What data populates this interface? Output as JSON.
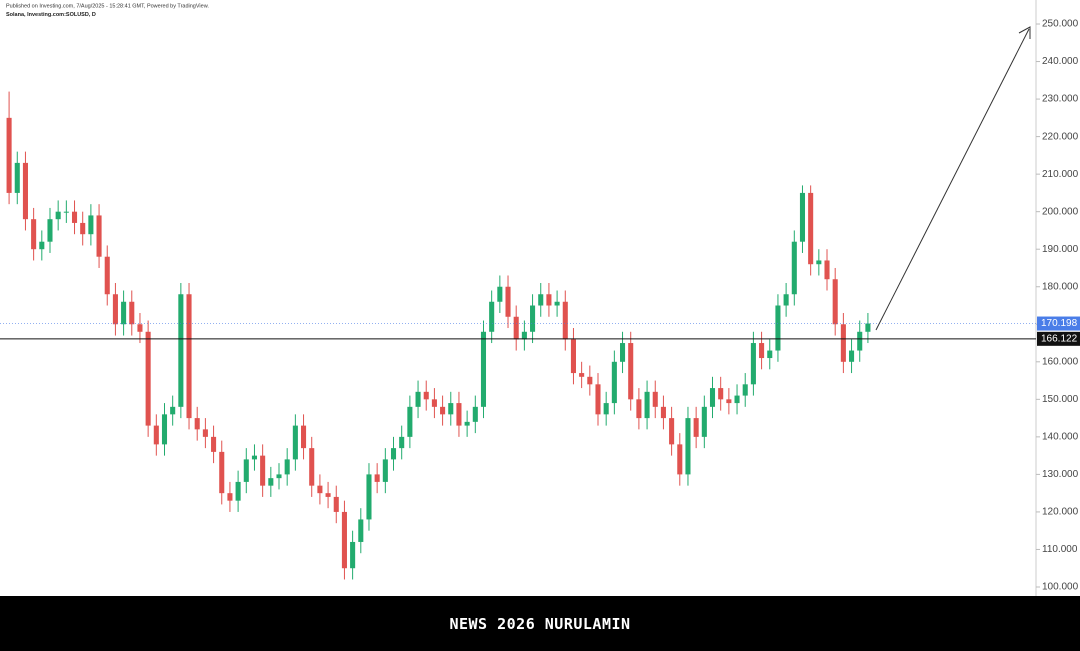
{
  "header": {
    "published": "Published on Investing.com, 7/Aug/2025 - 15:28:41 GMT, Powered by TradingView.",
    "symbol": "Solana, Investing.com:SOLUSD, D"
  },
  "chart_data": {
    "type": "candlestick",
    "up_color": "#22ab6e",
    "down_color": "#e0524f",
    "open": [
      225,
      205,
      213,
      198,
      190,
      192,
      198,
      200,
      200,
      197,
      194,
      199,
      188,
      178,
      170,
      176,
      170,
      168,
      143,
      138,
      146,
      148,
      178,
      145,
      142,
      140,
      136,
      125,
      123,
      128,
      134,
      135,
      127,
      129,
      130,
      134,
      143,
      137,
      127,
      125,
      124,
      120,
      105,
      112,
      118,
      130,
      128,
      134,
      137,
      140,
      148,
      152,
      150,
      148,
      146,
      149,
      143,
      144,
      148,
      168,
      176,
      180,
      172,
      166,
      168,
      175,
      178,
      175,
      176,
      166,
      157,
      156,
      154,
      146,
      149,
      160,
      165,
      150,
      145,
      152,
      148,
      145,
      138,
      130,
      145,
      140,
      148,
      153,
      150,
      149,
      151,
      154,
      165,
      161,
      163,
      175,
      178,
      192,
      205,
      186,
      187,
      182,
      170,
      160,
      163,
      168
    ],
    "high": [
      232,
      216,
      216,
      201,
      195,
      201,
      203,
      203,
      203,
      200,
      202,
      202,
      191,
      181,
      179,
      179,
      173,
      171,
      146,
      149,
      151,
      181,
      181,
      148,
      145,
      143,
      139,
      128,
      131,
      137,
      138,
      138,
      132,
      133,
      137,
      146,
      146,
      140,
      130,
      128,
      127,
      123,
      115,
      121,
      133,
      133,
      137,
      140,
      143,
      151,
      155,
      155,
      153,
      151,
      152,
      152,
      147,
      151,
      171,
      179,
      183,
      183,
      175,
      171,
      178,
      181,
      181,
      179,
      179,
      169,
      160,
      159,
      157,
      152,
      163,
      168,
      168,
      153,
      155,
      155,
      151,
      148,
      141,
      148,
      148,
      151,
      156,
      156,
      153,
      154,
      157,
      168,
      168,
      166,
      178,
      181,
      195,
      207,
      207,
      190,
      190,
      185,
      173,
      166,
      171,
      173
    ],
    "low": [
      202,
      202,
      195,
      187,
      187,
      189,
      195,
      197,
      194,
      191,
      191,
      185,
      175,
      167,
      167,
      167,
      165,
      140,
      135,
      135,
      143,
      145,
      142,
      139,
      137,
      133,
      122,
      120,
      120,
      125,
      131,
      124,
      124,
      126,
      127,
      131,
      134,
      124,
      122,
      121,
      117,
      102,
      102,
      109,
      115,
      125,
      125,
      131,
      134,
      137,
      145,
      147,
      145,
      143,
      143,
      140,
      140,
      141,
      145,
      165,
      173,
      169,
      163,
      163,
      165,
      172,
      172,
      172,
      163,
      154,
      153,
      151,
      143,
      143,
      146,
      157,
      147,
      142,
      142,
      145,
      142,
      135,
      127,
      127,
      137,
      137,
      145,
      147,
      146,
      146,
      148,
      151,
      158,
      158,
      160,
      172,
      175,
      189,
      183,
      183,
      179,
      167,
      157,
      157,
      160,
      165
    ],
    "close": [
      205,
      213,
      198,
      190,
      192,
      198,
      200,
      200,
      197,
      194,
      199,
      188,
      178,
      170,
      176,
      170,
      168,
      143,
      138,
      146,
      148,
      178,
      145,
      142,
      140,
      136,
      125,
      123,
      128,
      134,
      135,
      127,
      129,
      130,
      134,
      143,
      137,
      127,
      125,
      124,
      120,
      105,
      112,
      118,
      130,
      128,
      134,
      137,
      140,
      148,
      152,
      150,
      148,
      146,
      149,
      143,
      144,
      148,
      168,
      176,
      180,
      172,
      166,
      168,
      175,
      178,
      175,
      176,
      166,
      157,
      156,
      154,
      146,
      149,
      160,
      165,
      150,
      145,
      152,
      148,
      145,
      138,
      130,
      145,
      140,
      148,
      153,
      150,
      149,
      151,
      154,
      165,
      161,
      163,
      175,
      178,
      192,
      205,
      186,
      187,
      182,
      170,
      160,
      163,
      168,
      170.2
    ],
    "price_lines": [
      {
        "value": 170.198,
        "label": "170.198",
        "color": "#4a7de8"
      },
      {
        "value": 166.122,
        "label": "166.122",
        "color": "#111111"
      }
    ],
    "ylim": [
      97.6,
      256.4
    ],
    "yticks": [
      {
        "value": 100,
        "label": "100.000"
      },
      {
        "value": 110,
        "label": "110.000"
      },
      {
        "value": 120,
        "label": "120.000"
      },
      {
        "value": 130,
        "label": "130.000"
      },
      {
        "value": 140,
        "label": "140.000"
      },
      {
        "value": 150,
        "label": "150.000"
      },
      {
        "value": 160,
        "label": "160.000"
      },
      {
        "value": 170,
        "label": "170.000"
      },
      {
        "value": 180,
        "label": "180.000"
      },
      {
        "value": 190,
        "label": "190.000"
      },
      {
        "value": 200,
        "label": "200.000"
      },
      {
        "value": 210,
        "label": "210.000"
      },
      {
        "value": 220,
        "label": "220.000"
      },
      {
        "value": 230,
        "label": "230.000"
      },
      {
        "value": 240,
        "label": "240.000"
      },
      {
        "value": 250,
        "label": "250.000"
      }
    ]
  },
  "footer": {
    "text": "NEWS 2026 NURULAMIN"
  }
}
